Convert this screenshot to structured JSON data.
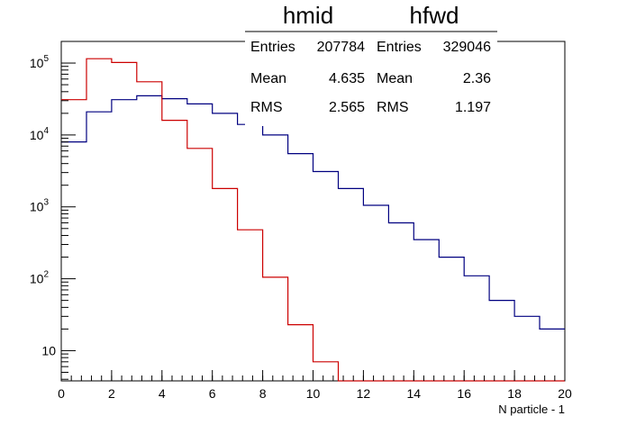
{
  "chart_data": {
    "type": "histogram",
    "xlabel": "N particle - 1",
    "ylabel": "",
    "xlim": [
      0,
      20
    ],
    "ylim": [
      3.8,
      200000
    ],
    "y_scale": "log",
    "grid": false,
    "x_ticks": [
      "0",
      "2",
      "4",
      "6",
      "8",
      "10",
      "12",
      "14",
      "16",
      "18",
      "20"
    ],
    "y_ticks": [
      {
        "value": 10,
        "base": "10",
        "exp": ""
      },
      {
        "value": 100,
        "base": "10",
        "exp": "2"
      },
      {
        "value": 1000,
        "base": "10",
        "exp": "3"
      },
      {
        "value": 10000,
        "base": "10",
        "exp": "4"
      },
      {
        "value": 100000,
        "base": "10",
        "exp": "5"
      }
    ],
    "bin_edges": [
      0,
      1,
      2,
      3,
      4,
      5,
      6,
      7,
      8,
      9,
      10,
      11,
      12,
      13,
      14,
      15,
      16,
      17,
      18,
      19,
      20
    ],
    "series": [
      {
        "name": "hmid",
        "color": "#000080",
        "values": [
          8000,
          21000,
          31000,
          35000,
          32000,
          27000,
          20000,
          14000,
          10000,
          5500,
          3100,
          1800,
          1050,
          600,
          350,
          200,
          110,
          50,
          30,
          20
        ]
      },
      {
        "name": "hfwd",
        "color": "#cc0000",
        "values": [
          31000,
          115000,
          102000,
          55000,
          16000,
          6500,
          1800,
          480,
          105,
          23,
          7,
          3,
          3,
          3,
          3,
          3,
          3,
          3,
          3,
          3
        ]
      }
    ],
    "stats": [
      {
        "title": "hmid",
        "entries_label": "Entries",
        "entries": "207784",
        "mean_label": "Mean",
        "mean": "4.635",
        "rms_label": "RMS",
        "rms": "2.565"
      },
      {
        "title": "hfwd",
        "entries_label": "Entries",
        "entries": "329046",
        "mean_label": "Mean",
        "mean": "2.36",
        "rms_label": "RMS",
        "rms": "1.197"
      }
    ]
  }
}
